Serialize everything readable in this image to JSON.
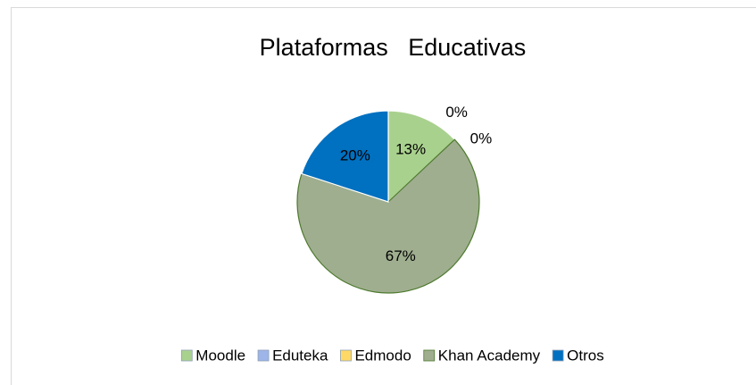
{
  "chart_data": {
    "type": "pie",
    "title": "Plataformas   Educativas",
    "categories": [
      "Moodle",
      "Eduteka",
      "Edmodo",
      "Khan Academy",
      "Otros"
    ],
    "values": [
      13,
      0,
      0,
      67,
      20
    ],
    "value_labels": [
      "13%",
      "0%",
      "0%",
      "67%",
      "20%"
    ],
    "colors": [
      "#a9d18e",
      "#9db5e8",
      "#ffd966",
      "#9fae8f",
      "#0070c0"
    ],
    "legend": "bottom"
  }
}
